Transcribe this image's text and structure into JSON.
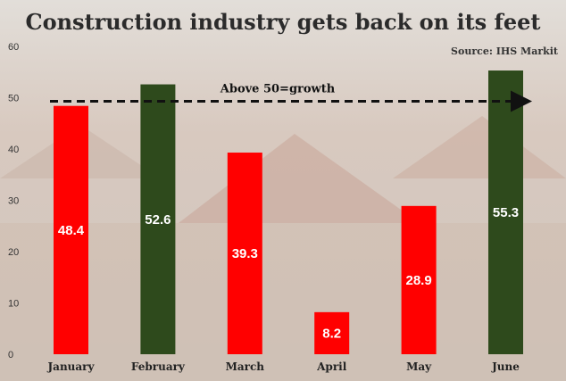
{
  "chart_data": {
    "type": "bar",
    "title": "Construction industry gets back on its feet",
    "source": "Source: IHS Markit",
    "categories": [
      "January",
      "February",
      "March",
      "April",
      "May",
      "June"
    ],
    "values": [
      48.4,
      52.6,
      39.3,
      8.2,
      28.9,
      55.3
    ],
    "value_labels": [
      "48.4",
      "52.6",
      "39.3",
      "8.2",
      "28.9",
      "55.3"
    ],
    "bar_colors": [
      "#ff0000",
      "#2e4a1c",
      "#ff0000",
      "#ff0000",
      "#ff0000",
      "#2e4a1c"
    ],
    "ylim": [
      0,
      60
    ],
    "yticks": [
      "0",
      "10",
      "20",
      "30",
      "40",
      "50",
      "60"
    ],
    "reference_line": {
      "value": 50,
      "label": "Above 50=growth",
      "style": "dashed-arrow"
    },
    "xlabel": "",
    "ylabel": "",
    "grid": false
  }
}
